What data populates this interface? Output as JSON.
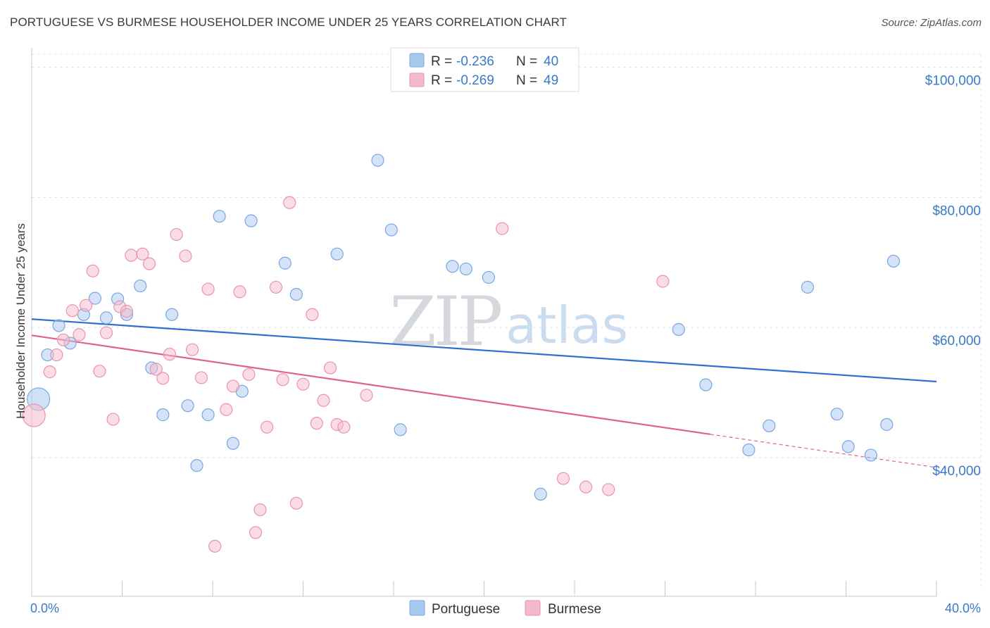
{
  "title": "PORTUGUESE VS BURMESE HOUSEHOLDER INCOME UNDER 25 YEARS CORRELATION CHART",
  "source": "Source: ZipAtlas.com",
  "watermark": {
    "zip": "ZIP",
    "atlas": "atlas"
  },
  "colors": {
    "portuguese_fill": "#a9c8f0",
    "portuguese_stroke": "#7aa6e0",
    "portuguese_line": "#2f6fcf",
    "burmese_fill": "#f6b9cb",
    "burmese_stroke": "#ea93ae",
    "burmese_line": "#e2608e",
    "grid": "#dfe3e8",
    "axis_text": "#3a78c9"
  },
  "legend": {
    "items": [
      {
        "r_label": "R = ",
        "r_value": "-0.236",
        "n_label": "N = ",
        "n_value": "40"
      },
      {
        "r_label": "R = ",
        "r_value": "-0.269",
        "n_label": "N = ",
        "n_value": "49"
      }
    ]
  },
  "chart_data": {
    "type": "scatter",
    "title": "PORTUGUESE VS BURMESE HOUSEHOLDER INCOME UNDER 25 YEARS CORRELATION CHART",
    "xlabel": "",
    "ylabel": "Householder Income Under 25 years",
    "xlim": [
      0,
      40
    ],
    "ylim": [
      20000,
      102000
    ],
    "x_tick_labels": [
      "0.0%",
      "40.0%"
    ],
    "y_ticks": [
      40000,
      60000,
      80000,
      100000
    ],
    "y_tick_labels": [
      "$40,000",
      "$60,000",
      "$80,000",
      "$100,000"
    ],
    "grid": true,
    "legend_position": "top-center",
    "series": [
      {
        "name": "Portuguese",
        "trend": {
          "x": [
            0,
            40
          ],
          "y": [
            61300,
            51700
          ]
        },
        "points": [
          {
            "x": 0.3,
            "y": 49000,
            "big": true
          },
          {
            "x": 0.7,
            "y": 55800
          },
          {
            "x": 1.2,
            "y": 60300
          },
          {
            "x": 1.7,
            "y": 57600
          },
          {
            "x": 2.3,
            "y": 62000
          },
          {
            "x": 2.8,
            "y": 64500
          },
          {
            "x": 3.3,
            "y": 61500
          },
          {
            "x": 3.8,
            "y": 64400
          },
          {
            "x": 4.2,
            "y": 62000
          },
          {
            "x": 4.8,
            "y": 66400
          },
          {
            "x": 5.3,
            "y": 53800
          },
          {
            "x": 5.8,
            "y": 46600
          },
          {
            "x": 6.2,
            "y": 62000
          },
          {
            "x": 6.9,
            "y": 48000
          },
          {
            "x": 7.3,
            "y": 38800
          },
          {
            "x": 7.8,
            "y": 46600
          },
          {
            "x": 8.3,
            "y": 77100
          },
          {
            "x": 8.9,
            "y": 42200
          },
          {
            "x": 9.3,
            "y": 50200
          },
          {
            "x": 9.7,
            "y": 76400
          },
          {
            "x": 11.2,
            "y": 69900
          },
          {
            "x": 11.7,
            "y": 65100
          },
          {
            "x": 13.5,
            "y": 71300
          },
          {
            "x": 15.3,
            "y": 85700
          },
          {
            "x": 15.9,
            "y": 75000
          },
          {
            "x": 16.3,
            "y": 44300
          },
          {
            "x": 18.6,
            "y": 69400
          },
          {
            "x": 19.2,
            "y": 69000
          },
          {
            "x": 20.2,
            "y": 67700
          },
          {
            "x": 22.5,
            "y": 34400
          },
          {
            "x": 28.6,
            "y": 59700
          },
          {
            "x": 29.8,
            "y": 51200
          },
          {
            "x": 31.7,
            "y": 41200
          },
          {
            "x": 32.6,
            "y": 44900
          },
          {
            "x": 34.3,
            "y": 66200
          },
          {
            "x": 35.6,
            "y": 46700
          },
          {
            "x": 36.1,
            "y": 41700
          },
          {
            "x": 37.1,
            "y": 40400
          },
          {
            "x": 37.8,
            "y": 45100
          },
          {
            "x": 38.1,
            "y": 70200
          }
        ]
      },
      {
        "name": "Burmese",
        "trend": {
          "x": [
            0,
            30
          ],
          "y": [
            58800,
            43600
          ]
        },
        "trend_extension": {
          "x": [
            30,
            40
          ],
          "y": [
            43600,
            38500
          ]
        },
        "points": [
          {
            "x": 0.1,
            "y": 46500,
            "big": true
          },
          {
            "x": 0.8,
            "y": 53200
          },
          {
            "x": 1.1,
            "y": 55800
          },
          {
            "x": 1.4,
            "y": 58100
          },
          {
            "x": 1.8,
            "y": 62600
          },
          {
            "x": 2.1,
            "y": 58900
          },
          {
            "x": 2.4,
            "y": 63400
          },
          {
            "x": 2.7,
            "y": 68700
          },
          {
            "x": 3.0,
            "y": 53300
          },
          {
            "x": 3.3,
            "y": 59200
          },
          {
            "x": 3.6,
            "y": 45900
          },
          {
            "x": 3.9,
            "y": 63200
          },
          {
            "x": 4.2,
            "y": 62500
          },
          {
            "x": 4.4,
            "y": 71100
          },
          {
            "x": 4.9,
            "y": 71300
          },
          {
            "x": 5.2,
            "y": 69800
          },
          {
            "x": 5.5,
            "y": 53600
          },
          {
            "x": 5.8,
            "y": 52200
          },
          {
            "x": 6.1,
            "y": 55900
          },
          {
            "x": 6.4,
            "y": 74300
          },
          {
            "x": 6.8,
            "y": 71000
          },
          {
            "x": 7.1,
            "y": 56600
          },
          {
            "x": 7.5,
            "y": 52300
          },
          {
            "x": 7.8,
            "y": 65900
          },
          {
            "x": 8.1,
            "y": 26400
          },
          {
            "x": 8.6,
            "y": 47400
          },
          {
            "x": 8.9,
            "y": 51000
          },
          {
            "x": 9.2,
            "y": 65500
          },
          {
            "x": 9.6,
            "y": 52800
          },
          {
            "x": 9.9,
            "y": 28500
          },
          {
            "x": 10.1,
            "y": 32000
          },
          {
            "x": 10.4,
            "y": 44700
          },
          {
            "x": 10.8,
            "y": 66200
          },
          {
            "x": 11.1,
            "y": 52000
          },
          {
            "x": 11.4,
            "y": 79200
          },
          {
            "x": 11.7,
            "y": 33000
          },
          {
            "x": 12.0,
            "y": 51300
          },
          {
            "x": 12.6,
            "y": 45300
          },
          {
            "x": 12.9,
            "y": 48800
          },
          {
            "x": 13.2,
            "y": 53800
          },
          {
            "x": 13.5,
            "y": 45100
          },
          {
            "x": 13.8,
            "y": 44700
          },
          {
            "x": 14.8,
            "y": 49600
          },
          {
            "x": 20.8,
            "y": 75200
          },
          {
            "x": 23.5,
            "y": 36800
          },
          {
            "x": 24.5,
            "y": 35500
          },
          {
            "x": 25.5,
            "y": 35100
          },
          {
            "x": 27.9,
            "y": 67100
          },
          {
            "x": 12.4,
            "y": 62000
          }
        ]
      }
    ]
  }
}
